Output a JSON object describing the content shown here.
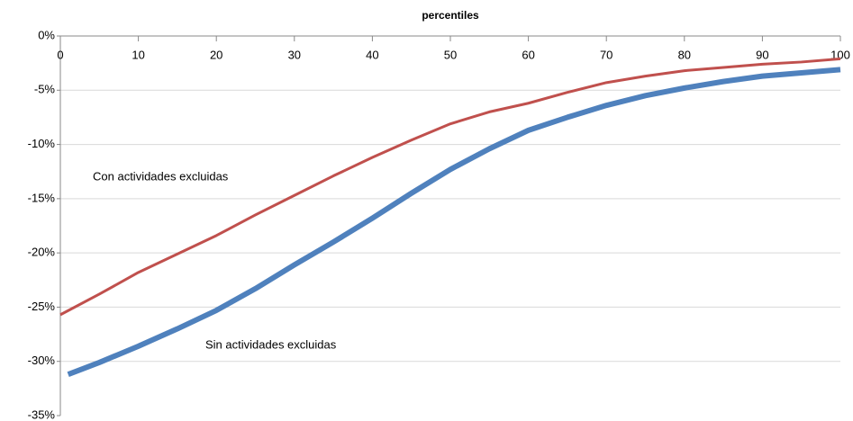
{
  "chart_data": {
    "type": "line",
    "title": "percentiles",
    "xlim": [
      0,
      100
    ],
    "xticks": [
      0,
      10,
      20,
      30,
      40,
      50,
      60,
      70,
      80,
      90,
      100
    ],
    "ylim": [
      -35,
      0
    ],
    "yticks": [
      {
        "value": 0,
        "label": "0%"
      },
      {
        "value": -5,
        "label": "-5%"
      },
      {
        "value": -10,
        "label": "-10%"
      },
      {
        "value": -15,
        "label": "-15%"
      },
      {
        "value": -20,
        "label": "-20%"
      },
      {
        "value": -25,
        "label": "-25%"
      },
      {
        "value": -30,
        "label": "-30%"
      },
      {
        "value": -35,
        "label": "-35%"
      }
    ],
    "grid": true,
    "series": [
      {
        "name": "Con actividades excluidas",
        "color": "#c0504d",
        "width": 3,
        "x": [
          0,
          5,
          10,
          15,
          20,
          25,
          30,
          35,
          40,
          45,
          50,
          55,
          60,
          65,
          70,
          75,
          80,
          85,
          90,
          95,
          100
        ],
        "values": [
          -25.7,
          -23.8,
          -21.8,
          -20.1,
          -18.4,
          -16.5,
          -14.7,
          -12.9,
          -11.2,
          -9.6,
          -8.1,
          -7.0,
          -6.2,
          -5.2,
          -4.3,
          -3.7,
          -3.2,
          -2.9,
          -2.6,
          -2.4,
          -2.1
        ]
      },
      {
        "name": "Sin actividades excluidas",
        "color": "#4f81bd",
        "width": 6,
        "x": [
          1,
          5,
          10,
          15,
          20,
          25,
          30,
          35,
          40,
          45,
          50,
          55,
          60,
          65,
          70,
          75,
          80,
          85,
          90,
          95,
          100
        ],
        "values": [
          -31.2,
          -30.1,
          -28.6,
          -27.0,
          -25.3,
          -23.3,
          -21.1,
          -19.0,
          -16.8,
          -14.5,
          -12.3,
          -10.4,
          -8.7,
          -7.5,
          -6.4,
          -5.5,
          -4.8,
          -4.2,
          -3.7,
          -3.4,
          -3.1
        ]
      }
    ]
  }
}
